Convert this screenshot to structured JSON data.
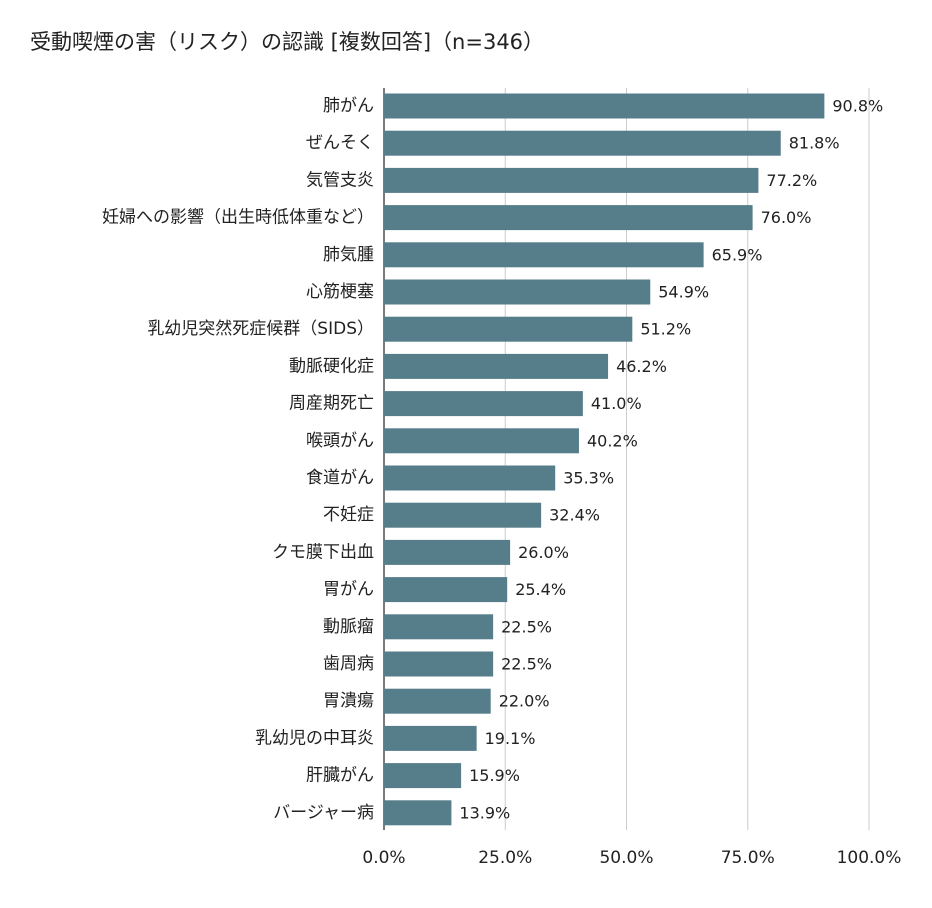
{
  "chart_data": {
    "type": "bar",
    "orientation": "horizontal",
    "title": "受動喫煙の害（リスク）の認識 [複数回答]（n=346）",
    "categories": [
      "肺がん",
      "ぜんそく",
      "気管支炎",
      "妊婦への影響（出生時低体重など）",
      "肺気腫",
      "心筋梗塞",
      "乳幼児突然死症候群（SIDS）",
      "動脈硬化症",
      "周産期死亡",
      "喉頭がん",
      "食道がん",
      "不妊症",
      "クモ膜下出血",
      "胃がん",
      "動脈瘤",
      "歯周病",
      "胃潰瘍",
      "乳幼児の中耳炎",
      "肝臓がん",
      "バージャー病"
    ],
    "values": [
      90.8,
      81.8,
      77.2,
      76.0,
      65.9,
      54.9,
      51.2,
      46.2,
      41.0,
      40.2,
      35.3,
      32.4,
      26.0,
      25.4,
      22.5,
      22.5,
      22.0,
      19.1,
      15.9,
      13.9
    ],
    "value_labels": [
      "90.8%",
      "81.8%",
      "77.2%",
      "76.0%",
      "65.9%",
      "54.9%",
      "51.2%",
      "46.2%",
      "41.0%",
      "40.2%",
      "35.3%",
      "32.4%",
      "26.0%",
      "25.4%",
      "22.5%",
      "22.5%",
      "22.0%",
      "19.1%",
      "15.9%",
      "13.9%"
    ],
    "xlim": [
      0,
      100
    ],
    "x_ticks": [
      0,
      25,
      50,
      75,
      100
    ],
    "x_tick_labels": [
      "0.0%",
      "25.0%",
      "50.0%",
      "75.0%",
      "100.0%"
    ],
    "grid": true,
    "legend": false,
    "bar_color": "#567e8a",
    "grid_color": "#cccccc"
  }
}
